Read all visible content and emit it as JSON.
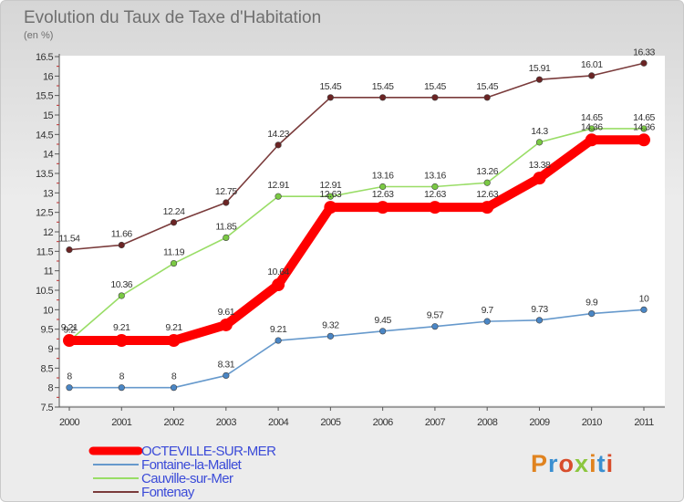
{
  "title": "Evolution du Taux de Taxe d'Habitation",
  "subtitle": "(en %)",
  "logo_text": "Proxiti",
  "chart_data": {
    "type": "line",
    "title": "Evolution du Taux de Taxe d'Habitation",
    "ylabel": "(en %)",
    "xlabel": "",
    "categories": [
      "2000",
      "2001",
      "2002",
      "2003",
      "2004",
      "2005",
      "2006",
      "2007",
      "2008",
      "2009",
      "2010",
      "2011"
    ],
    "ylim": [
      7.5,
      16.5
    ],
    "yticks": [
      "7.5",
      "8",
      "8.5",
      "9",
      "9.5",
      "10",
      "10.5",
      "11",
      "11.5",
      "12",
      "12.5",
      "13",
      "13.5",
      "14",
      "14.5",
      "15",
      "15.5",
      "16",
      "16.5"
    ],
    "grid": false,
    "legend_position": "bottom-left",
    "series": [
      {
        "name": "OCTEVILLE-SUR-MER",
        "color": "#ff0000",
        "marker": "#ff0000",
        "values": [
          9.21,
          9.21,
          9.21,
          9.61,
          10.64,
          12.63,
          12.63,
          12.63,
          12.63,
          13.38,
          14.36,
          14.36
        ],
        "labels": [
          "9.21",
          "9.21",
          "9.21",
          "9.61",
          "10.64",
          "12.63",
          "12.63",
          "12.63",
          "12.63",
          "13.38",
          "14.36",
          "14.36"
        ]
      },
      {
        "name": "Fontaine-la-Mallet",
        "color": "#6699cc",
        "marker": "#4a86c5",
        "values": [
          8,
          8,
          8,
          8.31,
          9.21,
          9.32,
          9.45,
          9.57,
          9.7,
          9.73,
          9.9,
          10
        ],
        "labels": [
          "8",
          "8",
          "8",
          "8.31",
          "9.21",
          "9.32",
          "9.45",
          "9.57",
          "9.7",
          "9.73",
          "9.9",
          "10"
        ]
      },
      {
        "name": "Cauville-sur-Mer",
        "color": "#99dd66",
        "marker": "#7ac943",
        "values": [
          9.2,
          10.36,
          11.19,
          11.85,
          12.91,
          12.91,
          13.16,
          13.16,
          13.26,
          14.3,
          14.65,
          14.65
        ],
        "labels": [
          "9.2",
          "10.36",
          "11.19",
          "11.85",
          "12.91",
          "12.91",
          "13.16",
          "13.16",
          "13.26",
          "14.3",
          "14.65",
          "14.65"
        ]
      },
      {
        "name": "Fontenay",
        "color": "#7a3b3b",
        "marker": "#6b2424",
        "values": [
          11.54,
          11.66,
          12.24,
          12.75,
          14.23,
          15.45,
          15.45,
          15.45,
          15.45,
          15.91,
          16.01,
          16.33
        ],
        "labels": [
          "11.54",
          "11.66",
          "12.24",
          "12.75",
          "14.23",
          "15.45",
          "15.45",
          "15.45",
          "15.45",
          "15.91",
          "16.01",
          "16.33"
        ]
      }
    ]
  },
  "legend": [
    {
      "name": "OCTEVILLE-SUR-MER",
      "color": "#ff0000"
    },
    {
      "name": "Fontaine-la-Mallet",
      "color": "#6699cc"
    },
    {
      "name": "Cauville-sur-Mer",
      "color": "#99dd66"
    },
    {
      "name": "Fontenay",
      "color": "#7a3b3b"
    }
  ]
}
